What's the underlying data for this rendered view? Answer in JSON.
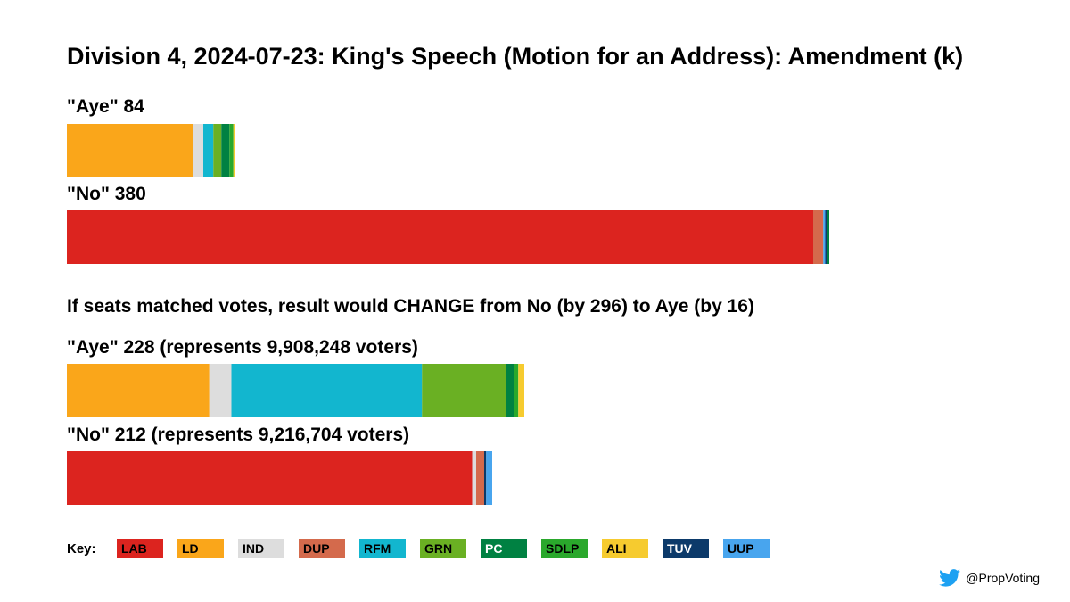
{
  "chart_data": {
    "type": "bar",
    "title": "Division 4, 2024-07-23: King's Speech (Motion for an Address): Amendment (k)",
    "scale_max": 380,
    "actual": [
      {
        "name": "Aye",
        "label": "\"Aye\" 84",
        "total": 84,
        "segments": [
          {
            "party": "LD",
            "value": 63
          },
          {
            "party": "IND",
            "value": 5
          },
          {
            "party": "RFM",
            "value": 5
          },
          {
            "party": "GRN",
            "value": 4
          },
          {
            "party": "PC",
            "value": 4
          },
          {
            "party": "SDLP",
            "value": 2
          },
          {
            "party": "ALI",
            "value": 1
          }
        ]
      },
      {
        "name": "No",
        "label": "\"No\" 380",
        "total": 380,
        "segments": [
          {
            "party": "LAB",
            "value": 372
          },
          {
            "party": "DUP",
            "value": 5
          },
          {
            "party": "UUP",
            "value": 1
          },
          {
            "party": "TUV",
            "value": 1
          },
          {
            "party": "PC",
            "value": 1
          }
        ]
      }
    ],
    "change_text": "If seats matched votes, result would CHANGE from No (by 296) to Aye (by 16)",
    "proportional": [
      {
        "name": "Aye",
        "label": "\"Aye\" 228 (represents 9,908,248 voters)",
        "total": 228,
        "segments": [
          {
            "party": "LD",
            "value": 71
          },
          {
            "party": "IND",
            "value": 11
          },
          {
            "party": "RFM",
            "value": 95
          },
          {
            "party": "GRN",
            "value": 42
          },
          {
            "party": "PC",
            "value": 4
          },
          {
            "party": "SDLP",
            "value": 2
          },
          {
            "party": "ALI",
            "value": 3
          }
        ]
      },
      {
        "name": "No",
        "label": "\"No\" 212 (represents 9,216,704 voters)",
        "total": 212,
        "segments": [
          {
            "party": "LAB",
            "value": 202
          },
          {
            "party": "IND",
            "value": 2
          },
          {
            "party": "DUP",
            "value": 4
          },
          {
            "party": "TUV",
            "value": 1
          },
          {
            "party": "UUP",
            "value": 3
          }
        ]
      }
    ]
  },
  "colors": {
    "LAB": "#dc241f",
    "LD": "#faa61a",
    "IND": "#dddddd",
    "DUP": "#d46a4c",
    "RFM": "#12b6cf",
    "GRN": "#6ab023",
    "PC": "#008142",
    "SDLP": "#2aa82c",
    "ALI": "#f6cb2f",
    "TUV": "#0c3a6a",
    "UUP": "#48a5ee"
  },
  "key": {
    "title": "Key:",
    "items": [
      {
        "code": "LAB",
        "text_color": "#000000"
      },
      {
        "code": "LD",
        "text_color": "#000000"
      },
      {
        "code": "IND",
        "text_color": "#000000"
      },
      {
        "code": "DUP",
        "text_color": "#000000"
      },
      {
        "code": "RFM",
        "text_color": "#000000"
      },
      {
        "code": "GRN",
        "text_color": "#000000"
      },
      {
        "code": "PC",
        "text_color": "#ffffff"
      },
      {
        "code": "SDLP",
        "text_color": "#000000"
      },
      {
        "code": "ALI",
        "text_color": "#000000"
      },
      {
        "code": "TUV",
        "text_color": "#ffffff"
      },
      {
        "code": "UUP",
        "text_color": "#000000"
      }
    ]
  },
  "credit": {
    "handle": "@PropVoting",
    "icon": "twitter-bird-icon"
  }
}
